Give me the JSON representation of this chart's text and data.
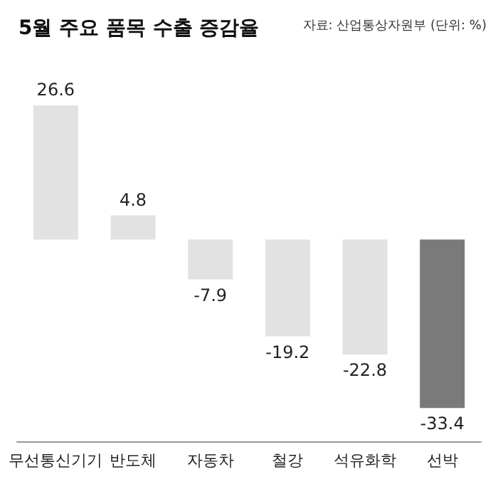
{
  "chart_data": {
    "type": "bar",
    "title": "5월 주요 품목 수출 증감율",
    "annotations": [
      "자료: 산업통상자원부 (단위: %)"
    ],
    "categories": [
      "무선통신기기",
      "반도체",
      "자동차",
      "철강",
      "석유화학",
      "선박"
    ],
    "values": [
      26.6,
      4.8,
      -7.9,
      -19.2,
      -22.8,
      -33.4
    ],
    "colors": [
      "#e2e2e2",
      "#e2e2e2",
      "#e2e2e2",
      "#e2e2e2",
      "#e2e2e2",
      "#7a7a7a"
    ],
    "data_labels": true
  }
}
